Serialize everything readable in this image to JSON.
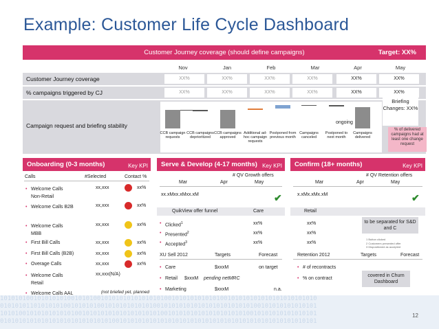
{
  "title": "Example: Customer Life Cycle Dashboard",
  "banner": {
    "text": "Customer Journey coverage (should define campaigns)",
    "target": "Target: XX%"
  },
  "months": [
    "Nov",
    "Jan",
    "Feb",
    "Mar",
    "Apr",
    "May"
  ],
  "coverage": {
    "label": "Customer Journey coverage",
    "values": [
      "XX%",
      "XX%",
      "XX%",
      "XX%",
      "XX%",
      "XX%"
    ]
  },
  "triggered": {
    "label": "% campaigns triggered by CJ",
    "values": [
      "XX%",
      "XX%",
      "XX%",
      "XX%",
      "XX%",
      "XX%"
    ]
  },
  "stability": {
    "label": "Campaign request and briefing stability",
    "box": "Briefing Changes: XX%",
    "ongoing": "ongoing",
    "note": "% of delivered campaigns had at least one change request",
    "steps": [
      "CCB campaign requests",
      "CCB campaigns deprioritized",
      "CCB campaigns approved",
      "Additional ad-hoc campaign requests",
      "Postponed from previous month",
      "Campaigns canceled",
      "Postponed to next month",
      "Campaigns delivered"
    ],
    "colors": {
      "gray": "#8c8c8c",
      "orange": "#e07b39",
      "blue": "#7fa3d1"
    }
  },
  "onboarding": {
    "title": "Onboarding (0-3 months)",
    "kpi": "Key KPI",
    "headers": [
      "Calls",
      "#Selected",
      "Contact %"
    ],
    "rows": [
      {
        "name": "Welcome Calls Non-Retail",
        "sel": "xx,xxx",
        "pct": "xx%",
        "status": "#d82a2a"
      },
      {
        "name": "Welcome Calls B2B",
        "sel": "xx,xxx",
        "pct": "xx%",
        "status": "#d82a2a"
      },
      {
        "name": "Welcome Calls MBB",
        "sel": "xx,xxx",
        "pct": "xx%",
        "status": "#f0c419"
      },
      {
        "name": "First Bill Calls",
        "sel": "xx,xxx",
        "pct": "xx%",
        "status": "#f0c419"
      },
      {
        "name": "First Bill Calls (B2B)",
        "sel": "xx,xxx",
        "pct": "xx%",
        "status": "#f0c419"
      },
      {
        "name": "Overage Calls",
        "sel": "xx,xxx",
        "pct": "xx%",
        "status": "#d82a2a"
      },
      {
        "name": "Welcome Calls Retail",
        "sel": "xx,xxx(N/A)",
        "pct": "",
        "status": ""
      },
      {
        "name": "Welcome Calls AAL",
        "sel": "",
        "pct": "",
        "status": ""
      }
    ],
    "note": "(not briefed yet, planned after retail)"
  },
  "serve": {
    "title": "Serve & Develop (4-17 months)",
    "kpi": "Key KPI",
    "growth": "# QV Growth offers",
    "months": [
      "Mar",
      "Apr",
      "May"
    ],
    "growth_value": "xx.xMxx.xMxx.xM",
    "funnel_title": "QuikView offer funnel",
    "care": "Care",
    "retail": "Retail",
    "funnel": [
      {
        "label": "Clicked",
        "sup": "1",
        "care": "xx%",
        "retail": "xx%"
      },
      {
        "label": "Presented",
        "sup": "2",
        "care": "xx%",
        "retail": "xx%"
      },
      {
        "label": "Accepted",
        "sup": "3",
        "care": "xx%",
        "retail": "xx%"
      }
    ],
    "xusell": {
      "title": "XU Sell 2012",
      "targets": "Targets",
      "forecast": "Forecast"
    },
    "xurows": [
      {
        "name": "Care",
        "target": "$xxxM",
        "forecast": "on target"
      },
      {
        "name": "Retail",
        "target": "$xxxM",
        "forecast": "pending netMRC"
      },
      {
        "name": "Marketing",
        "target": "$xxxM",
        "forecast": "n.a."
      }
    ]
  },
  "confirm": {
    "title": "Confirm (18+ months)",
    "kpi": "Key KPI",
    "retention": "# QV Retention offers",
    "months": [
      "Mar",
      "Apr",
      "May"
    ],
    "value": "x.xMx.xMx.xM",
    "separate": "to be separated for S&D and C",
    "footnotes": [
      "1  Button clicked",
      "2  Customers presented offer",
      "3  Dispositioned as accepted"
    ],
    "ret_title": "Retention 2012",
    "ret_targets": "Targets",
    "ret_forecast": "Forecast",
    "ret_rows": [
      "# of recontracts",
      "% on contract"
    ],
    "churn": "covered in Churn Dashboard"
  },
  "page": "12",
  "colors": {
    "accent": "#d6336b",
    "title": "#2b5797",
    "green": "#2e8b2e"
  }
}
